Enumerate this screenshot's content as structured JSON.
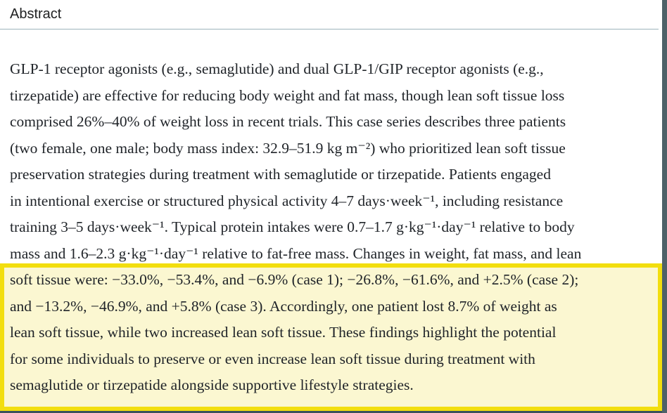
{
  "heading": "Abstract",
  "abstract_lines": [
    "GLP-1 receptor agonists (e.g., semaglutide) and dual GLP-1/GIP receptor agonists (e.g.,",
    "tirzepatide) are effective for reducing body weight and fat mass, though lean soft tissue loss",
    "comprised 26%–40% of weight loss in recent trials. This case series describes three patients",
    "(two female, one male; body mass index: 32.9–51.9 kg m⁻²) who prioritized lean soft tissue",
    "preservation strategies during treatment with semaglutide or tirzepatide. Patients engaged",
    "in intentional exercise or structured physical activity 4–7 days·week⁻¹, including resistance",
    "training 3–5 days·week⁻¹. Typical protein intakes were 0.7–1.7 g·kg⁻¹·day⁻¹ relative to body",
    "mass and 1.6–2.3 g·kg⁻¹·day⁻¹ relative to fat-free mass. Changes in weight, fat mass, and lean",
    "soft tissue were: −33.0%, −53.4%, and −6.9% (case 1); −26.8%, −61.6%, and +2.5% (case 2);",
    "and −13.2%, −46.9%, and +5.8% (case 3). Accordingly, one patient lost 8.7% of weight as",
    "lean soft tissue, while two increased lean soft tissue. These findings highlight the potential",
    "for some individuals to preserve or even increase lean soft tissue during treatment with",
    "semaglutide or tirzepatide alongside supportive lifestyle strategies."
  ],
  "highlight": {
    "first_highlighted_line_index": 8,
    "last_highlighted_line_index": 12
  },
  "colors": {
    "highlight_border": "#f2de0e",
    "highlight_background": "#fbf7d1",
    "scrollbar": "#4e6168",
    "window_edge": "#3c525c",
    "divider": "#9db3bb",
    "text": "#1f2328"
  }
}
